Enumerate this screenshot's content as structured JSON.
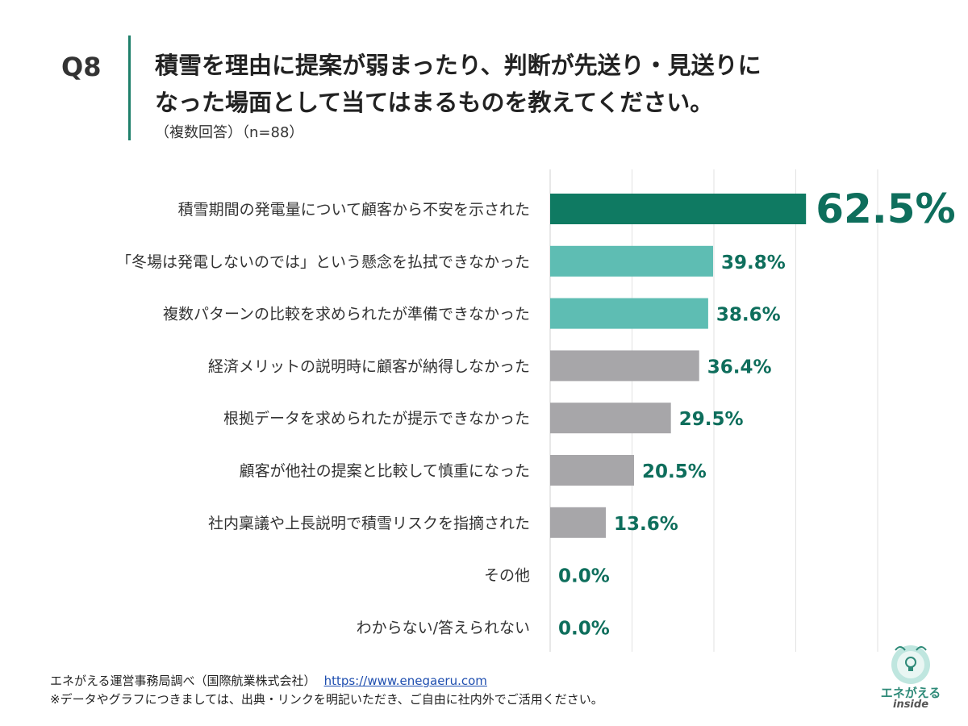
{
  "question": {
    "number": "Q8",
    "title_line1": "積雪を理由に提案が弱まったり、判断が先送り・見送りに",
    "title_line2": "なった場面として当てはまるものを教えてください。",
    "subtitle": "（複数回答）（n=88）"
  },
  "chart_data": {
    "type": "bar",
    "orientation": "horizontal",
    "categories": [
      "積雪期間の発電量について顧客から不安を示された",
      "「冬場は発電しないのでは」という懸念を払拭できなかった",
      "複数パターンの比較を求められたが準備できなかった",
      "経済メリットの説明時に顧客が納得しなかった",
      "根拠データを求められたが提示できなかった",
      "顧客が他社の提案と比較して慎重になった",
      "社内稟議や上長説明で積雪リスクを指摘された",
      "その他",
      "わからない/答えられない"
    ],
    "values": [
      62.5,
      39.8,
      38.6,
      36.4,
      29.5,
      20.5,
      13.6,
      0.0,
      0.0
    ],
    "value_labels": [
      "62.5%",
      "39.8%",
      "38.6%",
      "36.4%",
      "29.5%",
      "20.5%",
      "13.6%",
      "0.0%",
      "0.0%"
    ],
    "bar_colors": [
      "#0f7a62",
      "#5ebdb3",
      "#5ebdb3",
      "#a7a6a9",
      "#a7a6a9",
      "#a7a6a9",
      "#a7a6a9",
      "#a7a6a9",
      "#a7a6a9"
    ],
    "label_color": "#0e6e5c",
    "xlim": [
      0,
      80
    ],
    "grid": true,
    "unit": "%"
  },
  "footer": {
    "source": "エネがえる運営事務局調べ（国際航業株式会社）",
    "link": "https://www.enegaeru.com",
    "note": "※データやグラフにつきましては、出典・リンクを明記いただき、ご自由に社内外でご活用ください。"
  },
  "logo": {
    "name": "エネがえる",
    "sub": "inside"
  }
}
